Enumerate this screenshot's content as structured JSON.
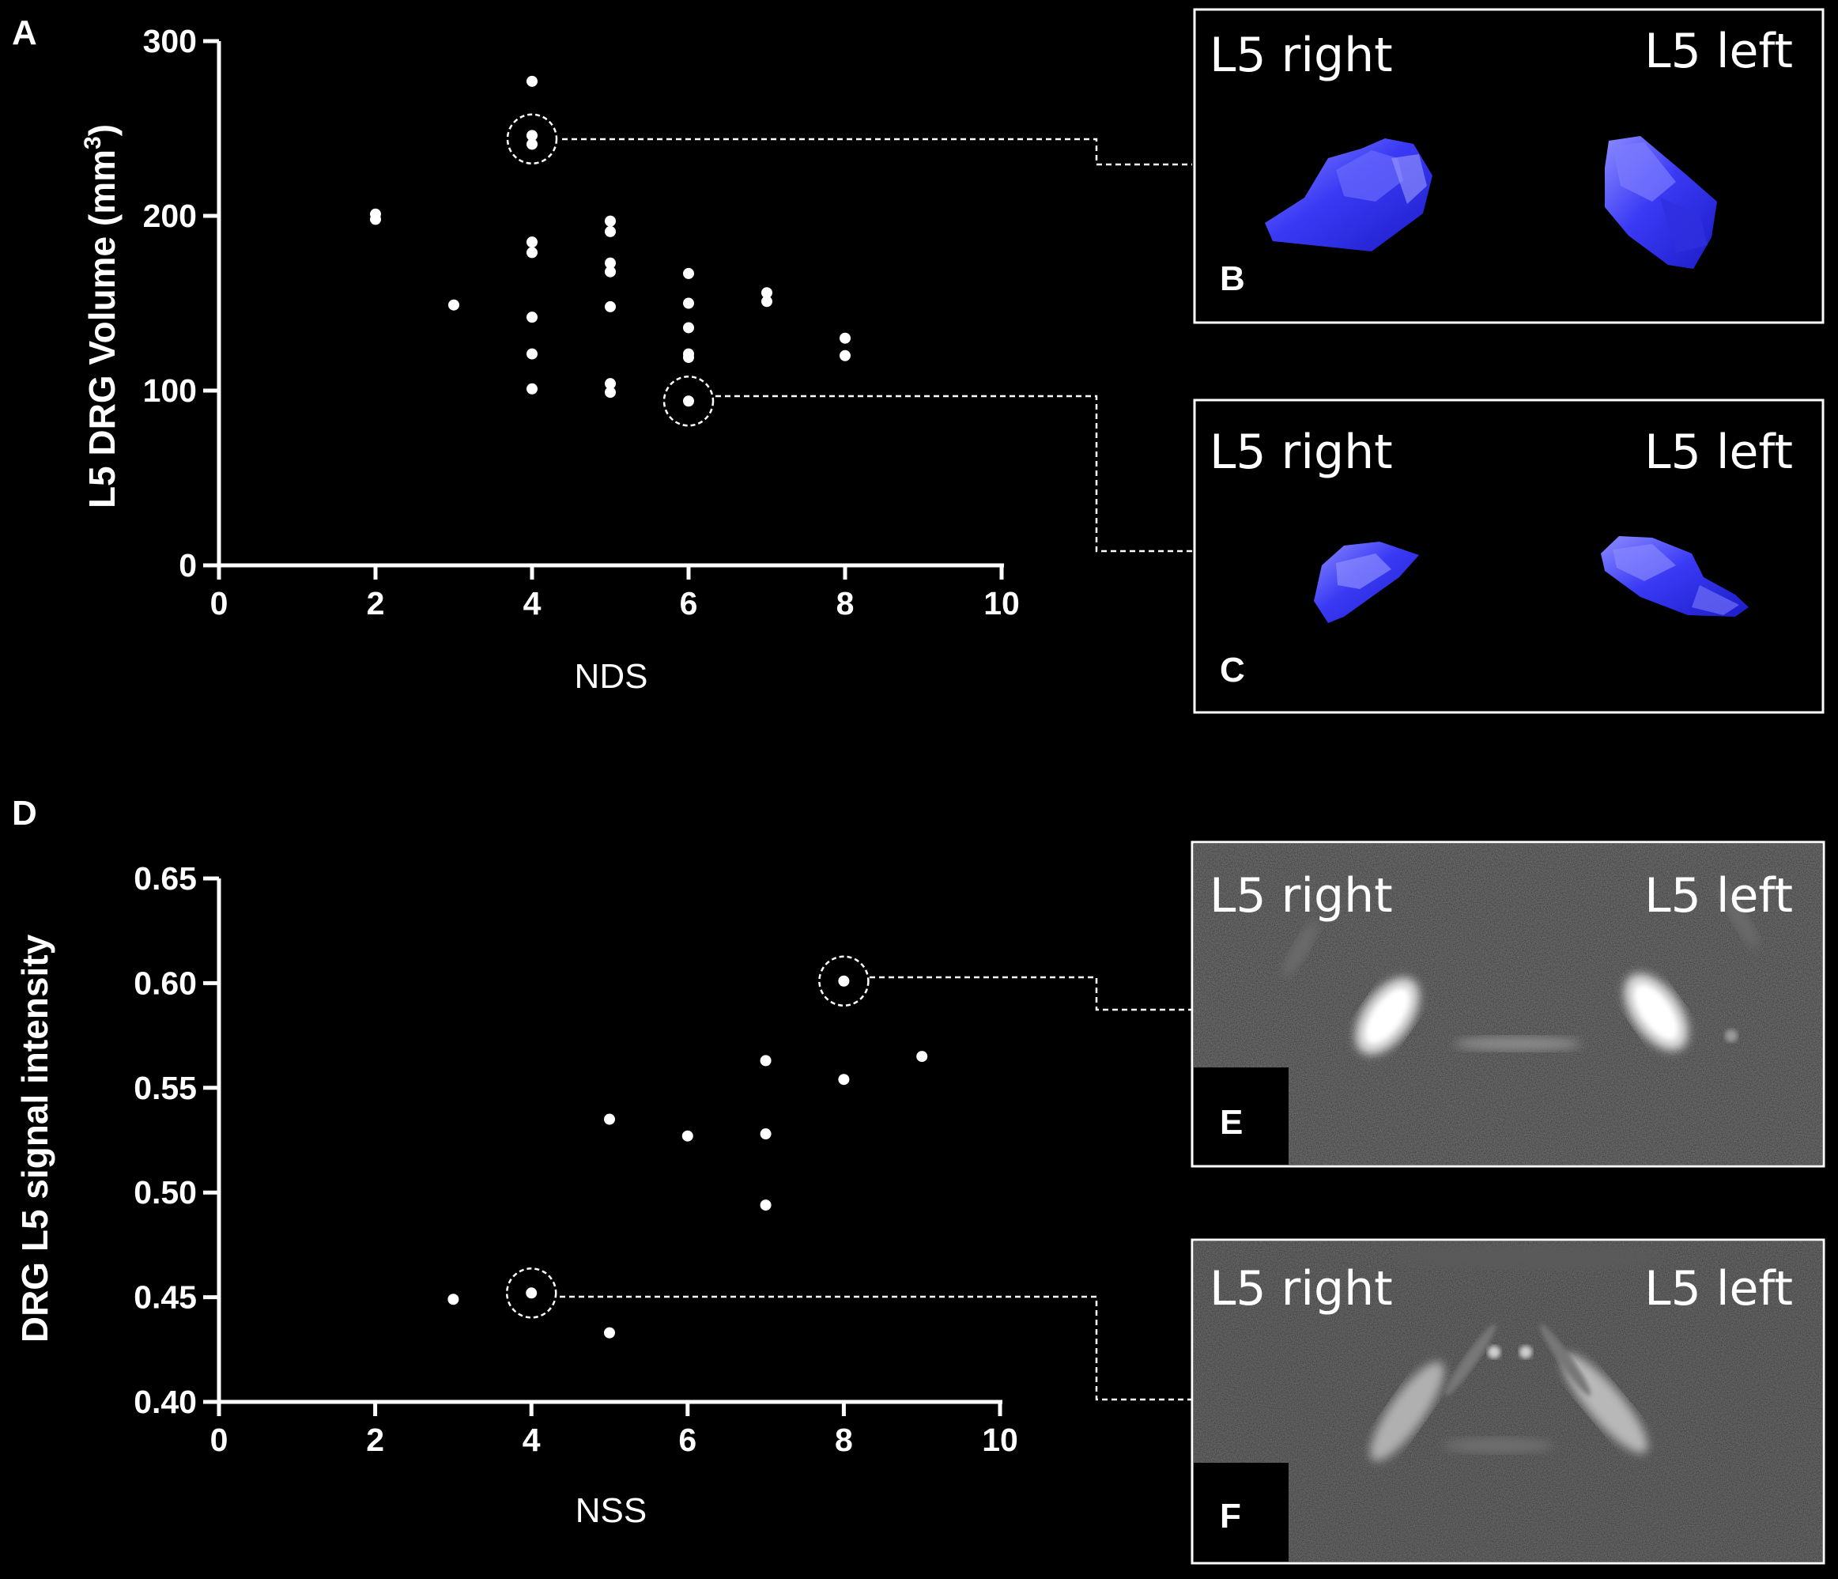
{
  "panels": {
    "A": "A",
    "B": "B",
    "C": "C",
    "D": "D",
    "E": "E",
    "F": "F"
  },
  "chart_data": [
    {
      "type": "scatter",
      "panel": "A",
      "xlabel": "NDS",
      "ylabel": "L5 DRG  Volume (mm",
      "ylabel_superscript": "3",
      "ylabel_suffix": ")",
      "xlim": [
        0,
        10
      ],
      "ylim": [
        0,
        300
      ],
      "xticks": [
        "0",
        "2",
        "4",
        "6",
        "8",
        "10"
      ],
      "yticks": [
        "0",
        "100",
        "200",
        "300"
      ],
      "points": [
        {
          "x": 2,
          "y": 201
        },
        {
          "x": 2,
          "y": 198
        },
        {
          "x": 3,
          "y": 149
        },
        {
          "x": 4,
          "y": 277
        },
        {
          "x": 4,
          "y": 246
        },
        {
          "x": 4,
          "y": 241
        },
        {
          "x": 4,
          "y": 185
        },
        {
          "x": 4,
          "y": 179
        },
        {
          "x": 4,
          "y": 142
        },
        {
          "x": 4,
          "y": 121
        },
        {
          "x": 4,
          "y": 101
        },
        {
          "x": 5,
          "y": 197
        },
        {
          "x": 5,
          "y": 191
        },
        {
          "x": 5,
          "y": 173
        },
        {
          "x": 5,
          "y": 168
        },
        {
          "x": 5,
          "y": 148
        },
        {
          "x": 5,
          "y": 104
        },
        {
          "x": 5,
          "y": 99
        },
        {
          "x": 6,
          "y": 167
        },
        {
          "x": 6,
          "y": 150
        },
        {
          "x": 6,
          "y": 136
        },
        {
          "x": 6,
          "y": 121
        },
        {
          "x": 6,
          "y": 119
        },
        {
          "x": 6,
          "y": 94
        },
        {
          "x": 7,
          "y": 156
        },
        {
          "x": 7,
          "y": 151
        },
        {
          "x": 8,
          "y": 130
        },
        {
          "x": 8,
          "y": 120
        }
      ],
      "highlighted": [
        {
          "x": 4,
          "y": 244,
          "inset": "B"
        },
        {
          "x": 6,
          "y": 94,
          "inset": "C"
        }
      ]
    },
    {
      "type": "scatter",
      "panel": "D",
      "xlabel": "NSS",
      "ylabel": "DRG L5 signal intensity",
      "xlim": [
        0,
        10
      ],
      "ylim": [
        0.4,
        0.65
      ],
      "xticks": [
        "0",
        "2",
        "4",
        "6",
        "8",
        "10"
      ],
      "yticks": [
        "0.40",
        "0.45",
        "0.50",
        "0.55",
        "0.60",
        "0.65"
      ],
      "points": [
        {
          "x": 3,
          "y": 0.449
        },
        {
          "x": 4,
          "y": 0.452
        },
        {
          "x": 5,
          "y": 0.535
        },
        {
          "x": 5,
          "y": 0.433
        },
        {
          "x": 6,
          "y": 0.527
        },
        {
          "x": 7,
          "y": 0.563
        },
        {
          "x": 7,
          "y": 0.528
        },
        {
          "x": 7,
          "y": 0.494
        },
        {
          "x": 8,
          "y": 0.601
        },
        {
          "x": 8,
          "y": 0.554
        },
        {
          "x": 9,
          "y": 0.565
        }
      ],
      "highlighted": [
        {
          "x": 8,
          "y": 0.601,
          "inset": "E"
        },
        {
          "x": 4,
          "y": 0.452,
          "inset": "F"
        }
      ]
    }
  ],
  "insets": {
    "B": {
      "left_label": "L5 right",
      "right_label": "L5 left",
      "kind": "blue-3d-render"
    },
    "C": {
      "left_label": "L5 right",
      "right_label": "L5 left",
      "kind": "blue-3d-render"
    },
    "E": {
      "left_label": "L5 right",
      "right_label": "L5 left",
      "kind": "mri-grayscale"
    },
    "F": {
      "left_label": "L5 right",
      "right_label": "L5 left",
      "kind": "mri-grayscale"
    }
  },
  "colors": {
    "background": "#000000",
    "foreground": "#ffffff",
    "render_blue": "#2f2ff0",
    "render_highlight": "#8a8aff"
  }
}
